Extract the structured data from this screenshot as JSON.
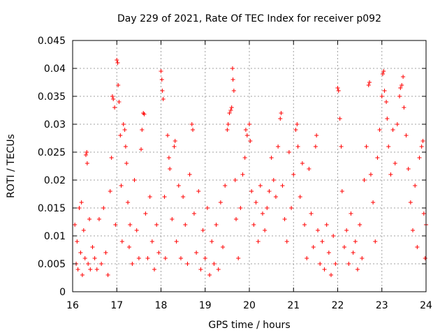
{
  "chart_data": {
    "type": "scatter",
    "title": "Day 229 of 2021, Rate Of TEC Index for receiver p092",
    "xlabel": "GPS time / hours",
    "ylabel": "ROTI / TECUs",
    "xlim": [
      16,
      24
    ],
    "ylim": [
      0,
      0.045
    ],
    "x_ticks": [
      16,
      17,
      18,
      19,
      20,
      21,
      22,
      23,
      24
    ],
    "x_tick_labels": [
      "16",
      "17",
      "18",
      "19",
      "20",
      "21",
      "22",
      "23",
      "24"
    ],
    "y_ticks": [
      0,
      0.005,
      0.01,
      0.015,
      0.02,
      0.025,
      0.03,
      0.035,
      0.04,
      0.045
    ],
    "y_tick_labels": [
      "0",
      "0.005",
      "0.01",
      "0.015",
      "0.02",
      "0.025",
      "0.03",
      "0.035",
      "0.04",
      "0.045"
    ],
    "grid": true,
    "marker": "+",
    "series_color": "#ff0000",
    "series": [
      {
        "name": "ROTI",
        "points": [
          [
            16.05,
            0.012
          ],
          [
            16.08,
            0.005
          ],
          [
            16.1,
            0.009
          ],
          [
            16.12,
            0.004
          ],
          [
            16.15,
            0.015
          ],
          [
            16.18,
            0.007
          ],
          [
            16.2,
            0.016
          ],
          [
            16.22,
            0.003
          ],
          [
            16.25,
            0.011
          ],
          [
            16.28,
            0.006
          ],
          [
            16.3,
            0.0245
          ],
          [
            16.32,
            0.025
          ],
          [
            16.33,
            0.023
          ],
          [
            16.35,
            0.005
          ],
          [
            16.38,
            0.013
          ],
          [
            16.4,
            0.004
          ],
          [
            16.45,
            0.008
          ],
          [
            16.5,
            0.006
          ],
          [
            16.55,
            0.004
          ],
          [
            16.6,
            0.013
          ],
          [
            16.65,
            0.005
          ],
          [
            16.7,
            0.015
          ],
          [
            16.75,
            0.007
          ],
          [
            16.8,
            0.003
          ],
          [
            16.85,
            0.018
          ],
          [
            16.88,
            0.024
          ],
          [
            16.9,
            0.035
          ],
          [
            16.92,
            0.0345
          ],
          [
            16.95,
            0.033
          ],
          [
            16.97,
            0.012
          ],
          [
            17.0,
            0.0415
          ],
          [
            17.02,
            0.041
          ],
          [
            17.03,
            0.037
          ],
          [
            17.05,
            0.034
          ],
          [
            17.08,
            0.028
          ],
          [
            17.1,
            0.019
          ],
          [
            17.12,
            0.009
          ],
          [
            17.15,
            0.03
          ],
          [
            17.18,
            0.029
          ],
          [
            17.2,
            0.026
          ],
          [
            17.22,
            0.023
          ],
          [
            17.25,
            0.016
          ],
          [
            17.28,
            0.008
          ],
          [
            17.3,
            0.012
          ],
          [
            17.35,
            0.005
          ],
          [
            17.4,
            0.02
          ],
          [
            17.45,
            0.011
          ],
          [
            17.5,
            0.006
          ],
          [
            17.55,
            0.0255
          ],
          [
            17.57,
            0.029
          ],
          [
            17.6,
            0.032
          ],
          [
            17.62,
            0.0318
          ],
          [
            17.65,
            0.014
          ],
          [
            17.7,
            0.006
          ],
          [
            17.75,
            0.017
          ],
          [
            17.8,
            0.009
          ],
          [
            17.85,
            0.004
          ],
          [
            17.9,
            0.012
          ],
          [
            17.95,
            0.007
          ],
          [
            18.0,
            0.0395
          ],
          [
            18.02,
            0.038
          ],
          [
            18.03,
            0.036
          ],
          [
            18.05,
            0.0345
          ],
          [
            18.08,
            0.017
          ],
          [
            18.1,
            0.006
          ],
          [
            18.15,
            0.028
          ],
          [
            18.18,
            0.024
          ],
          [
            18.2,
            0.022
          ],
          [
            18.25,
            0.013
          ],
          [
            18.3,
            0.026
          ],
          [
            18.32,
            0.027
          ],
          [
            18.35,
            0.009
          ],
          [
            18.4,
            0.019
          ],
          [
            18.45,
            0.006
          ],
          [
            18.5,
            0.017
          ],
          [
            18.55,
            0.012
          ],
          [
            18.6,
            0.005
          ],
          [
            18.65,
            0.021
          ],
          [
            18.7,
            0.03
          ],
          [
            18.72,
            0.029
          ],
          [
            18.75,
            0.014
          ],
          [
            18.8,
            0.007
          ],
          [
            18.85,
            0.018
          ],
          [
            18.9,
            0.004
          ],
          [
            18.95,
            0.011
          ],
          [
            19.0,
            0.006
          ],
          [
            19.05,
            0.015
          ],
          [
            19.1,
            0.003
          ],
          [
            19.15,
            0.009
          ],
          [
            19.2,
            0.005
          ],
          [
            19.25,
            0.012
          ],
          [
            19.3,
            0.004
          ],
          [
            19.35,
            0.016
          ],
          [
            19.4,
            0.008
          ],
          [
            19.45,
            0.019
          ],
          [
            19.5,
            0.029
          ],
          [
            19.52,
            0.03
          ],
          [
            19.55,
            0.032
          ],
          [
            19.58,
            0.0325
          ],
          [
            19.6,
            0.033
          ],
          [
            19.62,
            0.04
          ],
          [
            19.63,
            0.038
          ],
          [
            19.65,
            0.036
          ],
          [
            19.68,
            0.02
          ],
          [
            19.7,
            0.013
          ],
          [
            19.75,
            0.006
          ],
          [
            19.8,
            0.015
          ],
          [
            19.85,
            0.021
          ],
          [
            19.9,
            0.024
          ],
          [
            19.92,
            0.029
          ],
          [
            19.95,
            0.028
          ],
          [
            20.0,
            0.03
          ],
          [
            20.02,
            0.027
          ],
          [
            20.05,
            0.018
          ],
          [
            20.1,
            0.012
          ],
          [
            20.15,
            0.016
          ],
          [
            20.2,
            0.009
          ],
          [
            20.25,
            0.019
          ],
          [
            20.3,
            0.014
          ],
          [
            20.35,
            0.011
          ],
          [
            20.4,
            0.015
          ],
          [
            20.45,
            0.018
          ],
          [
            20.5,
            0.024
          ],
          [
            20.55,
            0.02
          ],
          [
            20.6,
            0.017
          ],
          [
            20.65,
            0.026
          ],
          [
            20.7,
            0.031
          ],
          [
            20.72,
            0.032
          ],
          [
            20.75,
            0.019
          ],
          [
            20.8,
            0.013
          ],
          [
            20.85,
            0.009
          ],
          [
            20.9,
            0.025
          ],
          [
            20.95,
            0.015
          ],
          [
            21.0,
            0.021
          ],
          [
            21.05,
            0.029
          ],
          [
            21.08,
            0.03
          ],
          [
            21.1,
            0.026
          ],
          [
            21.15,
            0.017
          ],
          [
            21.2,
            0.023
          ],
          [
            21.25,
            0.012
          ],
          [
            21.3,
            0.006
          ],
          [
            21.35,
            0.022
          ],
          [
            21.4,
            0.014
          ],
          [
            21.45,
            0.008
          ],
          [
            21.5,
            0.026
          ],
          [
            21.52,
            0.028
          ],
          [
            21.55,
            0.011
          ],
          [
            21.6,
            0.005
          ],
          [
            21.65,
            0.009
          ],
          [
            21.7,
            0.004
          ],
          [
            21.75,
            0.012
          ],
          [
            21.8,
            0.007
          ],
          [
            21.85,
            0.003
          ],
          [
            21.9,
            0.01
          ],
          [
            21.95,
            0.005
          ],
          [
            22.0,
            0.0365
          ],
          [
            22.02,
            0.036
          ],
          [
            22.05,
            0.031
          ],
          [
            22.08,
            0.026
          ],
          [
            22.1,
            0.018
          ],
          [
            22.15,
            0.008
          ],
          [
            22.2,
            0.011
          ],
          [
            22.25,
            0.005
          ],
          [
            22.3,
            0.014
          ],
          [
            22.35,
            0.007
          ],
          [
            22.4,
            0.009
          ],
          [
            22.45,
            0.004
          ],
          [
            22.5,
            0.012
          ],
          [
            22.55,
            0.006
          ],
          [
            22.6,
            0.02
          ],
          [
            22.65,
            0.026
          ],
          [
            22.7,
            0.037
          ],
          [
            22.72,
            0.0375
          ],
          [
            22.75,
            0.021
          ],
          [
            22.8,
            0.016
          ],
          [
            22.85,
            0.009
          ],
          [
            22.9,
            0.024
          ],
          [
            22.95,
            0.029
          ],
          [
            23.0,
            0.035
          ],
          [
            23.02,
            0.039
          ],
          [
            23.04,
            0.0395
          ],
          [
            23.06,
            0.036
          ],
          [
            23.1,
            0.034
          ],
          [
            23.12,
            0.031
          ],
          [
            23.15,
            0.026
          ],
          [
            23.2,
            0.021
          ],
          [
            23.25,
            0.029
          ],
          [
            23.3,
            0.023
          ],
          [
            23.35,
            0.03
          ],
          [
            23.4,
            0.035
          ],
          [
            23.42,
            0.0365
          ],
          [
            23.45,
            0.037
          ],
          [
            23.48,
            0.0385
          ],
          [
            23.5,
            0.033
          ],
          [
            23.55,
            0.028
          ],
          [
            23.6,
            0.022
          ],
          [
            23.65,
            0.016
          ],
          [
            23.7,
            0.011
          ],
          [
            23.75,
            0.019
          ],
          [
            23.8,
            0.008
          ],
          [
            23.85,
            0.024
          ],
          [
            23.9,
            0.026
          ],
          [
            23.93,
            0.027
          ],
          [
            23.95,
            0.014
          ],
          [
            23.98,
            0.006
          ],
          [
            24.0,
            0.012
          ]
        ]
      }
    ]
  }
}
